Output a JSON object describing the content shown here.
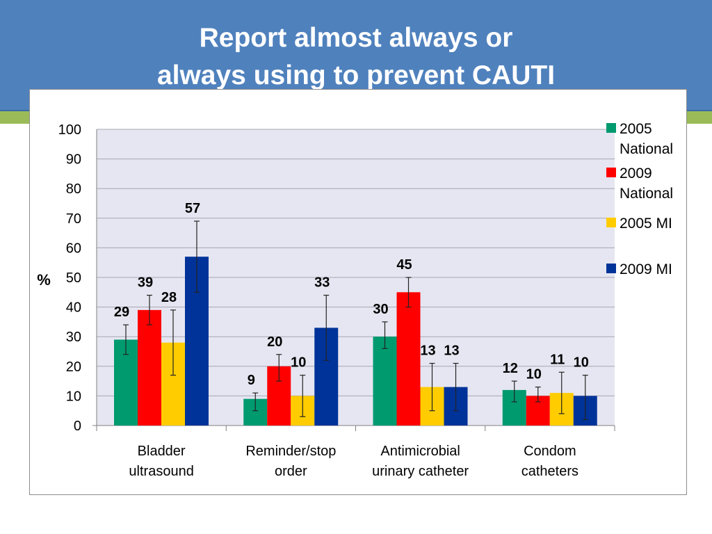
{
  "slide": {
    "title_line1": "Report almost always or",
    "title_line2": "always using to prevent CAUTI"
  },
  "colors": {
    "banner": "#4f81bd",
    "stripe": "#9bbb59",
    "plot_area": "#e6e6f2"
  },
  "chart_data": {
    "type": "bar",
    "title": "Report almost always or always using to prevent CAUTI",
    "ylabel": "%",
    "xlabel": "",
    "ylim": [
      0,
      100
    ],
    "yticks": [
      0,
      10,
      20,
      30,
      40,
      50,
      60,
      70,
      80,
      90,
      100
    ],
    "grid": true,
    "legend_position": "right",
    "categories": [
      [
        "Bladder",
        "ultrasound"
      ],
      [
        "Reminder/stop",
        "order"
      ],
      [
        "Antimicrobial",
        "urinary catheter"
      ],
      [
        "Condom",
        "catheters"
      ]
    ],
    "series": [
      {
        "name": [
          "2005",
          "National"
        ],
        "color": "#009a6f",
        "values": [
          29,
          9,
          30,
          12
        ],
        "error_low": [
          24,
          5,
          26,
          8
        ],
        "error_high": [
          34,
          11,
          35,
          15
        ]
      },
      {
        "name": [
          "2009",
          "National"
        ],
        "color": "#ff0000",
        "values": [
          39,
          20,
          45,
          10
        ],
        "error_low": [
          34,
          15,
          40,
          8
        ],
        "error_high": [
          44,
          24,
          50,
          13
        ]
      },
      {
        "name": [
          "2005 MI"
        ],
        "color": "#ffcc00",
        "values": [
          28,
          10,
          13,
          11
        ],
        "error_low": [
          17,
          3,
          5,
          4
        ],
        "error_high": [
          39,
          17,
          21,
          18
        ]
      },
      {
        "name": [
          "2009 MI"
        ],
        "color": "#003399",
        "values": [
          57,
          33,
          13,
          10
        ],
        "error_low": [
          45,
          22,
          5,
          2
        ],
        "error_high": [
          69,
          44,
          21,
          17
        ]
      }
    ]
  }
}
